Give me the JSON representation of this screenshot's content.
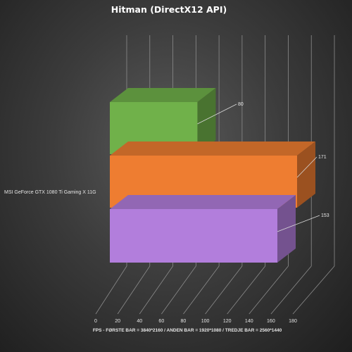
{
  "chart_data": {
    "type": "bar",
    "orientation": "horizontal",
    "three_d": true,
    "title": "Hitman  (DirectX12  API)",
    "categories": [
      "MSI GeForce GTX 1080 Ti Gaming X  11G"
    ],
    "series": [
      {
        "values": [
          80
        ],
        "color": "#70b14a"
      },
      {
        "values": [
          171
        ],
        "color": "#ee7d31"
      },
      {
        "values": [
          153
        ],
        "color": "#b27edc"
      }
    ],
    "xlim": [
      0,
      180
    ],
    "xticks": [
      0,
      20,
      40,
      60,
      80,
      100,
      120,
      140,
      160,
      180
    ],
    "xlabel": "FPS - FØRSTE BAR = 3840*2160 / ANDEN BAR = 1920*1080 / TREDJE BAR = 2560*1440",
    "grid": true,
    "legend": "none"
  }
}
